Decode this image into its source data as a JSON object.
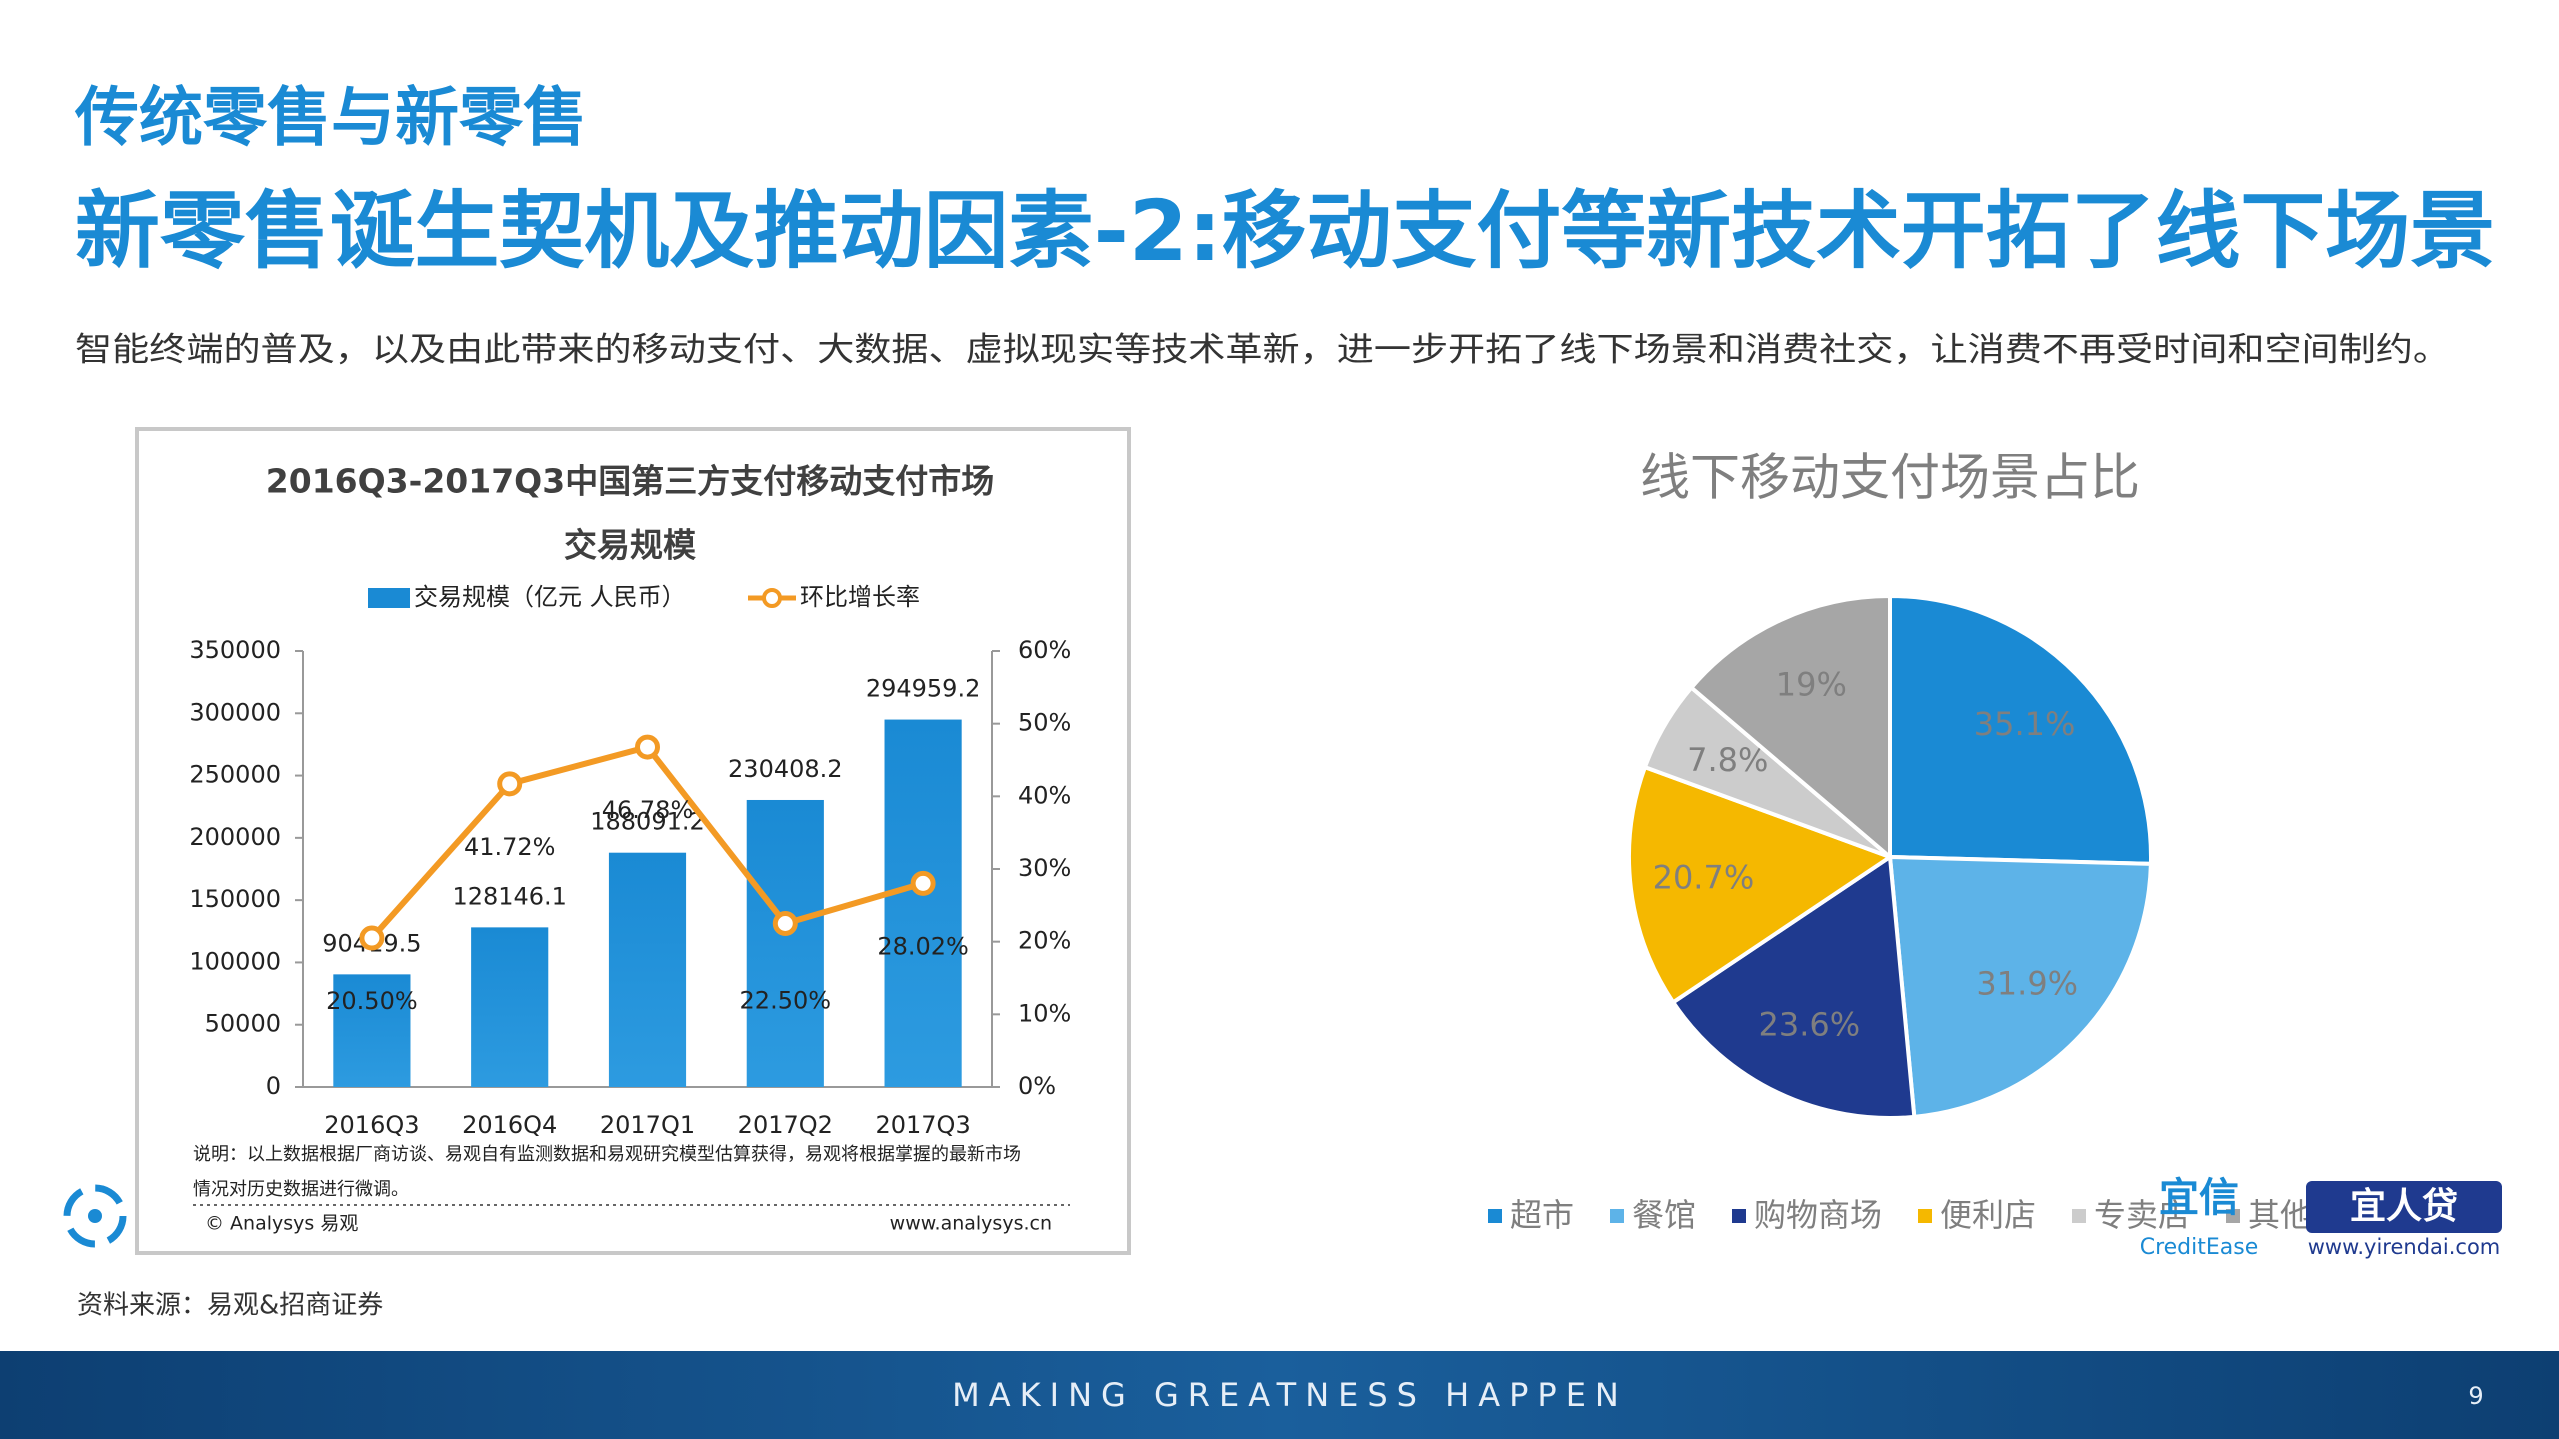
{
  "header": {
    "section": "传统零售与新零售",
    "title": "新零售诞生契机及推动因素-2:移动支付等新技术开拓了线下场景",
    "subtitle": "智能终端的普及，以及由此带来的移动支付、大数据、虚拟现实等技术革新，进一步开拓了线下场景和消费社交，让消费不再受时间和空间制约。"
  },
  "chart_data": [
    {
      "type": "bar",
      "title": [
        "2016Q3-2017Q3中国第三方支付移动支付市场",
        "交易规模"
      ],
      "categories": [
        "2016Q3",
        "2016Q4",
        "2017Q1",
        "2017Q2",
        "2017Q3"
      ],
      "series": [
        {
          "name": "交易规模（亿元 人民币）",
          "color": "#1a8ad4",
          "values": [
            90419.5,
            128146.1,
            188091.2,
            230408.2,
            294959.2
          ]
        },
        {
          "name": "环比增长率",
          "type": "line",
          "axis": "y2",
          "color": "#f39a24",
          "values": [
            20.5,
            41.72,
            46.78,
            22.5,
            28.02
          ],
          "value_labels": [
            "20.50%",
            "41.72%",
            "46.78%",
            "22.50%",
            "28.02%"
          ]
        }
      ],
      "ylim": [
        0,
        350000
      ],
      "yticks": [
        0,
        50000,
        100000,
        150000,
        200000,
        250000,
        300000,
        350000
      ],
      "y2lim": [
        0,
        60
      ],
      "y2ticks": [
        {
          "value": 0,
          "label": "0%"
        },
        {
          "value": 10,
          "label": "10%"
        },
        {
          "value": 20,
          "label": "20%"
        },
        {
          "value": 30,
          "label": "30%"
        },
        {
          "value": 40,
          "label": "40%"
        },
        {
          "value": 50,
          "label": "50%"
        },
        {
          "value": 60,
          "label": "60%"
        }
      ],
      "note": [
        "说明：以上数据根据厂商访谈、易观自有监测数据和易观研究模型估算获得，易观将根据掌握的最新市场",
        "情况对历史数据进行微调。"
      ],
      "credit": "© Analysys 易观",
      "url": "www.analysys.cn"
    },
    {
      "type": "pie",
      "title": "线下移动支付场景占比",
      "categories": [
        "超市",
        "餐馆",
        "购物商场",
        "便利店",
        "专卖店",
        "其他"
      ],
      "values": [
        35.1,
        31.9,
        23.6,
        20.7,
        7.8,
        19
      ],
      "value_labels": [
        "35.1%",
        "31.9%",
        "23.6%",
        "20.7%",
        "7.8%",
        "19%"
      ],
      "colors": [
        "#1a8ad4",
        "#5db3e8",
        "#1f3a8f",
        "#f5b800",
        "#cccccc",
        "#a6a6a6"
      ]
    }
  ],
  "source": "资料来源：易观&招商证券",
  "logos": {
    "creditease": [
      "宜信",
      "CreditEase"
    ],
    "yirendai": [
      "宜人贷",
      "www.yirendai.com"
    ]
  },
  "footer": {
    "tagline": "MAKING GREATNESS HAPPEN",
    "page": "9"
  }
}
